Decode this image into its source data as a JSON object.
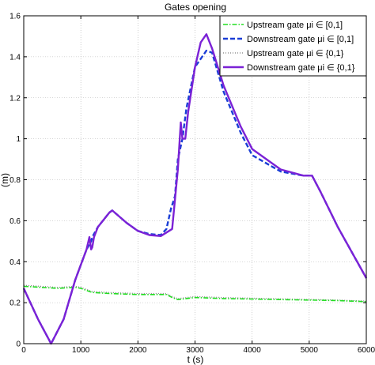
{
  "chart_data": {
    "type": "line",
    "title": "Gates opening",
    "xlabel": "t (s)",
    "ylabel": "(m)",
    "xlim": [
      0,
      6000
    ],
    "ylim": [
      0,
      1.6
    ],
    "xticks": [
      0,
      1000,
      2000,
      3000,
      4000,
      5000,
      6000
    ],
    "yticks": [
      0,
      0.2,
      0.4,
      0.6,
      0.8,
      1,
      1.2,
      1.4,
      1.6
    ],
    "xtick_labels": [
      "0",
      "1000",
      "2000",
      "3000",
      "4000",
      "5000",
      "6000"
    ],
    "ytick_labels": [
      "0",
      "0.2",
      "0.4",
      "0.6",
      "0.8",
      "1",
      "1.2",
      "1.4",
      "1.6"
    ],
    "grid": true,
    "legend_position": "top-right",
    "series": [
      {
        "name": "Upstream gate  μi ∈ [0,1]",
        "color": "#22dd22",
        "style": "dashdot",
        "x": [
          0,
          300,
          600,
          900,
          1000,
          1100,
          1200,
          1500,
          2000,
          2500,
          2600,
          2700,
          3000,
          3500,
          4000,
          4500,
          5000,
          5500,
          6000
        ],
        "y": [
          0.28,
          0.275,
          0.27,
          0.275,
          0.27,
          0.26,
          0.25,
          0.245,
          0.24,
          0.24,
          0.225,
          0.215,
          0.225,
          0.22,
          0.218,
          0.215,
          0.213,
          0.21,
          0.205
        ]
      },
      {
        "name": "Downstream gate  μi ∈ [0,1]",
        "color": "#1a3ed6",
        "style": "dashed",
        "x": [
          0,
          250,
          480,
          700,
          900,
          1100,
          1180,
          1200,
          1300,
          1500,
          1550,
          1800,
          2000,
          2200,
          2400,
          2500,
          2580,
          2650,
          2700,
          2780,
          2850,
          3000,
          3200,
          3300,
          3500,
          3800,
          4000,
          4500,
          4900,
          5050,
          5200,
          5500,
          6000
        ],
        "y": [
          0.27,
          0.12,
          0.0,
          0.12,
          0.31,
          0.46,
          0.5,
          0.52,
          0.57,
          0.64,
          0.65,
          0.59,
          0.55,
          0.535,
          0.53,
          0.56,
          0.66,
          0.72,
          0.9,
          1.0,
          1.15,
          1.35,
          1.43,
          1.42,
          1.23,
          1.03,
          0.92,
          0.84,
          0.82,
          0.82,
          0.74,
          0.57,
          0.32
        ]
      },
      {
        "name": "Upstream gate  μi ∈ {0,1}",
        "color": "#7f7f7f",
        "style": "dotted",
        "x": [
          0,
          300,
          600,
          900,
          1000,
          1100,
          1200,
          1500,
          2000,
          2500,
          2600,
          2700,
          3000,
          3500,
          4000,
          4500,
          5000,
          5500,
          6000
        ],
        "y": [
          0.285,
          0.28,
          0.275,
          0.28,
          0.275,
          0.265,
          0.255,
          0.25,
          0.245,
          0.245,
          0.23,
          0.22,
          0.23,
          0.225,
          0.222,
          0.219,
          0.216,
          0.213,
          0.208
        ]
      },
      {
        "name": "Downstream gate  μi ∈ {0,1}",
        "color": "#7b22d6",
        "style": "solid",
        "x": [
          0,
          250,
          480,
          700,
          900,
          1100,
          1150,
          1180,
          1200,
          1230,
          1300,
          1500,
          1550,
          1800,
          2000,
          2200,
          2400,
          2600,
          2700,
          2750,
          2780,
          2830,
          2880,
          3000,
          3100,
          3200,
          3300,
          3500,
          3800,
          4000,
          4500,
          4900,
          5050,
          5200,
          5500,
          6000
        ],
        "y": [
          0.27,
          0.12,
          0.0,
          0.12,
          0.31,
          0.46,
          0.52,
          0.46,
          0.47,
          0.52,
          0.57,
          0.64,
          0.65,
          0.59,
          0.55,
          0.53,
          0.525,
          0.56,
          0.85,
          1.08,
          1.0,
          1.0,
          1.13,
          1.35,
          1.47,
          1.51,
          1.44,
          1.26,
          1.06,
          0.95,
          0.85,
          0.82,
          0.82,
          0.74,
          0.57,
          0.32
        ]
      }
    ]
  }
}
